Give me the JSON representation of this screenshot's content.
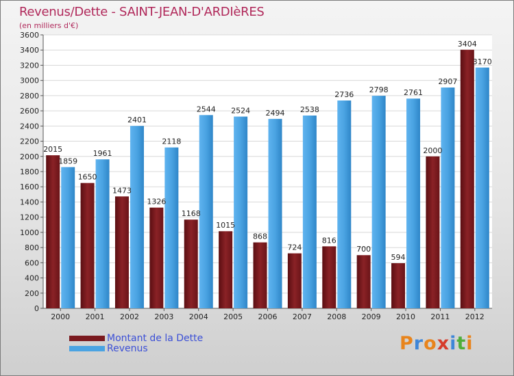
{
  "header": {
    "title": "Revenus/Dette - SAINT-JEAN-D'ARDIèRES",
    "subtitle": "(en milliers d'€)"
  },
  "legend": {
    "debt_label": "Montant de la Dette",
    "revenue_label": "Revenus"
  },
  "brand": {
    "logo_text": "Proxiti",
    "letters": [
      "P",
      "r",
      "o",
      "x",
      "i",
      "t",
      "i"
    ]
  },
  "colors": {
    "debt": "#7a1a1f",
    "revenue": "#4aa3e2",
    "title": "#b0285a",
    "logo": [
      "#e8841c",
      "#3e86d8",
      "#e8841c",
      "#d63b2a",
      "#3e86d8",
      "#4fae3a",
      "#e8841c"
    ]
  },
  "chart_data": {
    "type": "bar",
    "title": "Revenus/Dette - SAINT-JEAN-D'ARDIèRES",
    "ylabel": "(en milliers d'€)",
    "xlabel": "",
    "categories": [
      "2000",
      "2001",
      "2002",
      "2003",
      "2004",
      "2005",
      "2006",
      "2007",
      "2008",
      "2009",
      "2010",
      "2011",
      "2012"
    ],
    "series": [
      {
        "name": "Montant de la Dette",
        "values": [
          2015,
          1650,
          1473,
          1326,
          1168,
          1015,
          868,
          724,
          816,
          700,
          594,
          2000,
          3404
        ],
        "labels": [
          "2015",
          "1650",
          "1473",
          "1326",
          "1168",
          "1015",
          "868",
          "724",
          "816",
          "700",
          "594",
          "2000",
          "3404"
        ]
      },
      {
        "name": "Revenus",
        "values": [
          1859,
          1961,
          2401,
          2118,
          2544,
          2524,
          2494,
          2538,
          2736,
          2798,
          2761,
          2907,
          3170
        ],
        "labels": [
          "1859",
          "1961",
          "2401",
          "2118",
          "2544",
          "2524",
          "2494",
          "2538",
          "2736",
          "2798",
          "2761",
          "2907",
          "3170"
        ]
      }
    ],
    "ylim": [
      0,
      3600
    ],
    "yticks": [
      0,
      200,
      400,
      600,
      800,
      1000,
      1200,
      1400,
      1600,
      1800,
      2000,
      2200,
      2400,
      2600,
      2800,
      3000,
      3200,
      3400,
      3600
    ],
    "grid": true,
    "legend": "bottom-left"
  }
}
